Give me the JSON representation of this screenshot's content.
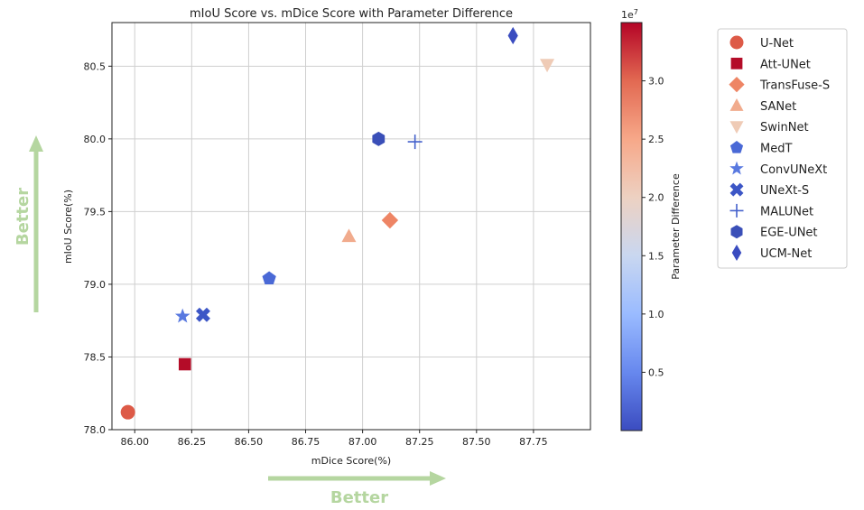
{
  "chart_data": {
    "type": "scatter",
    "title": "mIoU Score vs. mDice Score with Parameter Difference",
    "xlabel": "mDice Score(%)",
    "ylabel": "mIoU Score(%)",
    "xlim": [
      85.9,
      88.0
    ],
    "ylim": [
      78.0,
      80.8
    ],
    "xticks": [
      "86.00",
      "86.25",
      "86.50",
      "86.75",
      "87.00",
      "87.25",
      "87.50",
      "87.75"
    ],
    "yticks": [
      "78.0",
      "78.5",
      "79.0",
      "79.5",
      "80.0",
      "80.5"
    ],
    "grid": true,
    "legend_position": "outside-right",
    "series": [
      {
        "name": "U-Net",
        "marker": "circle",
        "color": "#dd5a47",
        "x": 85.97,
        "y": 78.12
      },
      {
        "name": "Att-UNet",
        "marker": "square",
        "color": "#b40c28",
        "x": 86.22,
        "y": 78.45
      },
      {
        "name": "TransFuse-S",
        "marker": "diamond",
        "color": "#ee8565",
        "x": 87.12,
        "y": 79.44
      },
      {
        "name": "SANet",
        "marker": "triangle-up",
        "color": "#f1ab8d",
        "x": 86.94,
        "y": 79.33
      },
      {
        "name": "SwinNet",
        "marker": "triangle-down",
        "color": "#efcbb6",
        "x": 87.81,
        "y": 80.51
      },
      {
        "name": "MedT",
        "marker": "pentagon",
        "color": "#4a69d6",
        "x": 86.59,
        "y": 79.04
      },
      {
        "name": "ConvUNeXt",
        "marker": "star",
        "color": "#5979e0",
        "x": 86.21,
        "y": 78.78
      },
      {
        "name": "UNeXt-S",
        "marker": "x-thick",
        "color": "#3c56c6",
        "x": 86.3,
        "y": 78.79
      },
      {
        "name": "MALUNet",
        "marker": "plus",
        "color": "#4461cc",
        "x": 87.23,
        "y": 79.98
      },
      {
        "name": "EGE-UNet",
        "marker": "hexagon",
        "color": "#3a4fb8",
        "x": 87.07,
        "y": 80.0
      },
      {
        "name": "UCM-Net",
        "marker": "thin-diamond",
        "color": "#3a4cc0",
        "x": 87.66,
        "y": 80.71
      }
    ],
    "colorbar": {
      "label": "Parameter Difference",
      "exponent": "1e7",
      "ticks": [
        "0.5",
        "1.0",
        "1.5",
        "2.0",
        "2.5",
        "3.0"
      ],
      "tick_values": [
        0.5,
        1.0,
        1.5,
        2.0,
        2.5,
        3.0
      ],
      "range": [
        0.0,
        3.5
      ],
      "colors": [
        "#3b4cc0",
        "#6788ee",
        "#9abbff",
        "#c9d7f0",
        "#edd1c2",
        "#f7a889",
        "#e26952",
        "#b40426"
      ]
    }
  },
  "annotations": {
    "better_x": "Better",
    "better_y": "Better",
    "arrow_color": "#b5d6a0"
  }
}
